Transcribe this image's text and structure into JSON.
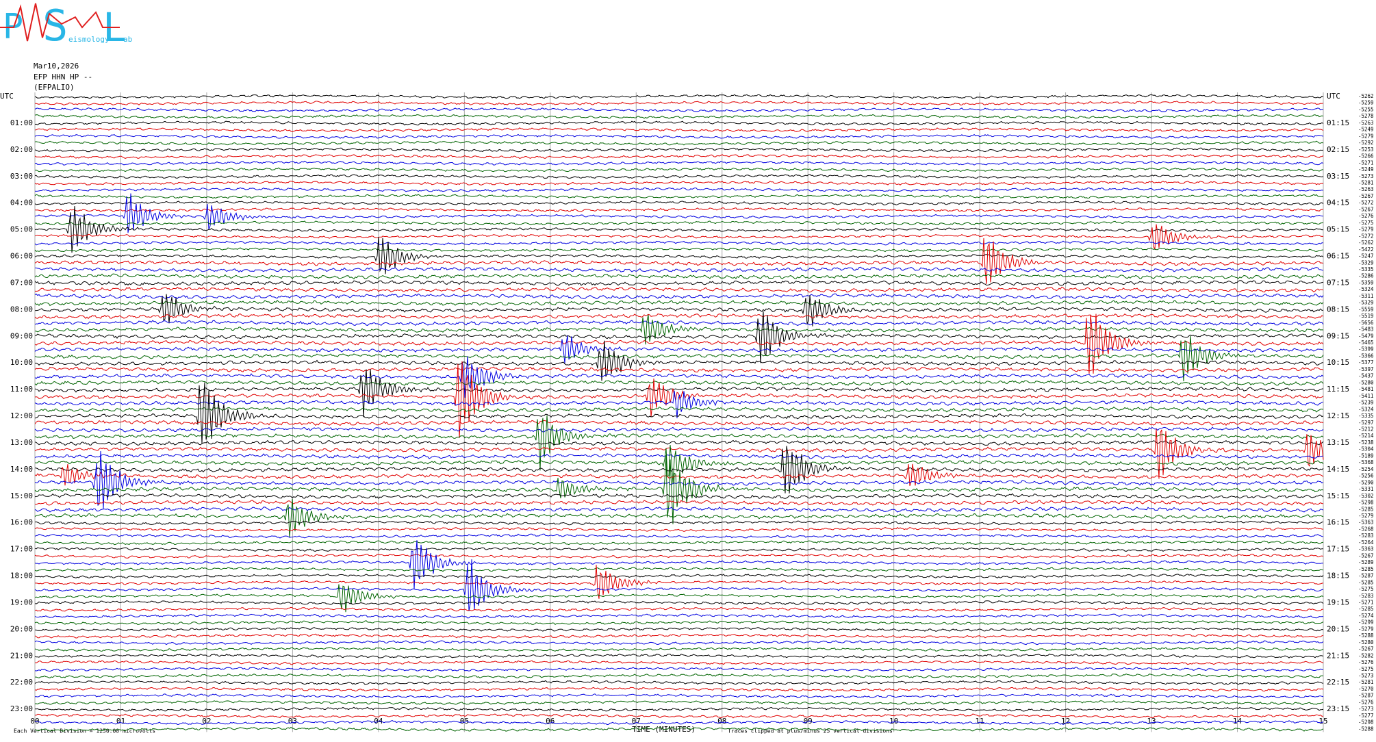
{
  "logo": {
    "letters": [
      "P",
      "S",
      "L"
    ],
    "small": [
      "eismology",
      "ab"
    ]
  },
  "header": {
    "date": "Mar10,2026",
    "channel": "EFP HHN HP --",
    "station": "(EFPALIO)"
  },
  "left_labels": [
    "UTC",
    "01:00",
    "02:00",
    "03:00",
    "04:00",
    "05:00",
    "06:00",
    "07:00",
    "08:00",
    "09:00",
    "10:00",
    "11:00",
    "12:00",
    "13:00",
    "14:00",
    "15:00",
    "16:00",
    "17:00",
    "18:00",
    "19:00",
    "20:00",
    "21:00",
    "22:00",
    "23:00"
  ],
  "right_labels": [
    "UTC",
    "01:15",
    "02:15",
    "03:15",
    "04:15",
    "05:15",
    "06:15",
    "07:15",
    "08:15",
    "09:15",
    "10:15",
    "11:15",
    "12:15",
    "13:15",
    "14:15",
    "15:15",
    "16:15",
    "17:15",
    "18:15",
    "19:15",
    "20:15",
    "21:15",
    "22:15",
    "23:15"
  ],
  "trace_labels": [
    "-5262",
    "-5259",
    "-5255",
    "-5278",
    "-5263",
    "-5249",
    "-5279",
    "-5292",
    "-5253",
    "-5266",
    "-5271",
    "-5249",
    "-5273",
    "-5281",
    "-5263",
    "-5267",
    "-5272",
    "-5267",
    "-5276",
    "-5275",
    "-5279",
    "-5272",
    "-5262",
    "-5422",
    "-5247",
    "-5329",
    "-5335",
    "-5286",
    "-5359",
    "-5324",
    "-5311",
    "-5329",
    "-5559",
    "-5519",
    "-5656",
    "-5483",
    "-5479",
    "-5465",
    "-5399",
    "-5366",
    "-5377",
    "-5397",
    "-5437",
    "-5280",
    "-5481",
    "-5411",
    "-5239",
    "-5324",
    "-5335",
    "-5297",
    "-5212",
    "-5214",
    "-5238",
    "-5304",
    "-5189",
    "-5368",
    "-5254",
    "-5256",
    "-5290",
    "-5331",
    "-5302",
    "-5298",
    "-5285",
    "-5279",
    "-5363",
    "-5268",
    "-5283",
    "-5264",
    "-5363",
    "-5267",
    "-5289",
    "-5285",
    "-5287",
    "-5285",
    "-5275",
    "-5283",
    "-5271",
    "-5285",
    "-5274",
    "-5299",
    "-5279",
    "-5288",
    "-5280",
    "-5267",
    "-5282",
    "-5276",
    "-5275",
    "-5273",
    "-5281",
    "-5270",
    "-5287",
    "-5276",
    "-5273",
    "-5277",
    "-5298",
    "-5288"
  ],
  "x_axis": {
    "ticks": [
      "00",
      "01",
      "02",
      "03",
      "04",
      "05",
      "06",
      "07",
      "08",
      "09",
      "10",
      "11",
      "12",
      "13",
      "14",
      "15"
    ],
    "title": "TIME (MINUTES)"
  },
  "footer": {
    "scale": "Each Vertical Division = 1250.00 microvolts",
    "clip": "Traces clipped at plus/minus 25 vertical divisions"
  }
}
